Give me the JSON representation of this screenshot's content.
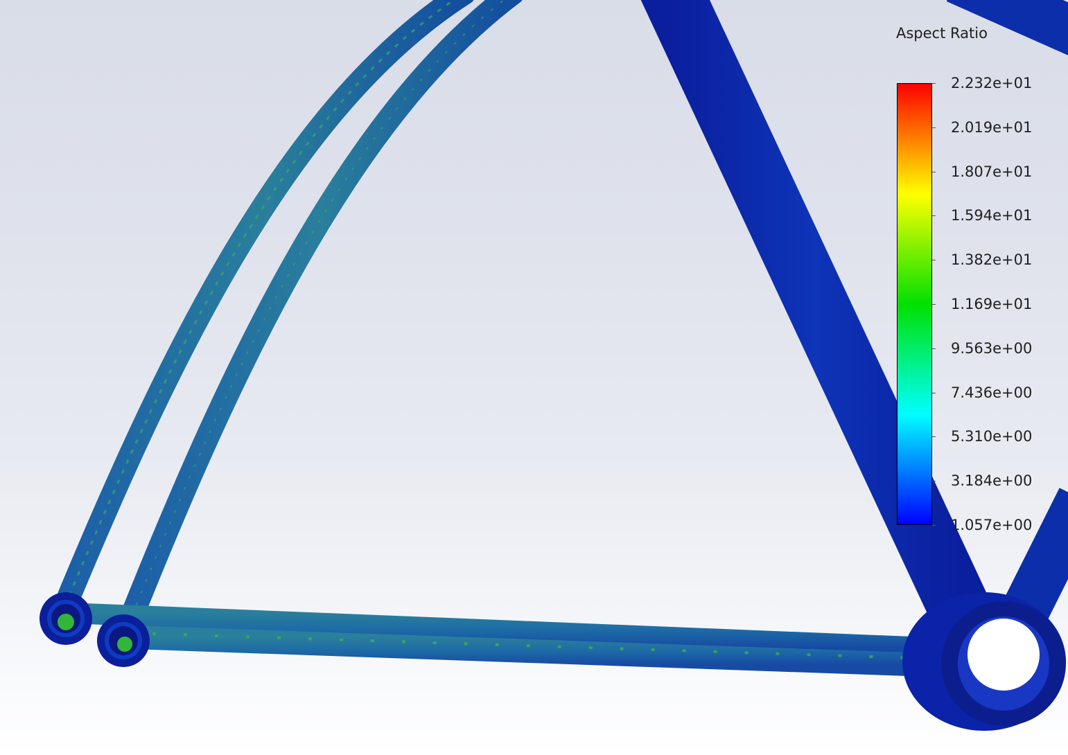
{
  "legend": {
    "title": "Aspect Ratio",
    "ticks": [
      "2.232e+01",
      "2.019e+01",
      "1.807e+01",
      "1.594e+01",
      "1.382e+01",
      "1.169e+01",
      "9.563e+00",
      "7.436e+00",
      "5.310e+00",
      "3.184e+00",
      "1.057e+00"
    ],
    "colors": {
      "max": "#ff0000",
      "upper": "#ffff00",
      "mid": "#00e000",
      "lower": "#00ffff",
      "min": "#0000ff"
    }
  },
  "colors": {
    "mesh_primary": "#0b2fb0",
    "mesh_secondary": "#1a6fa0",
    "mesh_highlight": "#2ecc40",
    "background_top": "#d9dde8",
    "background_bottom": "#ffffff"
  }
}
